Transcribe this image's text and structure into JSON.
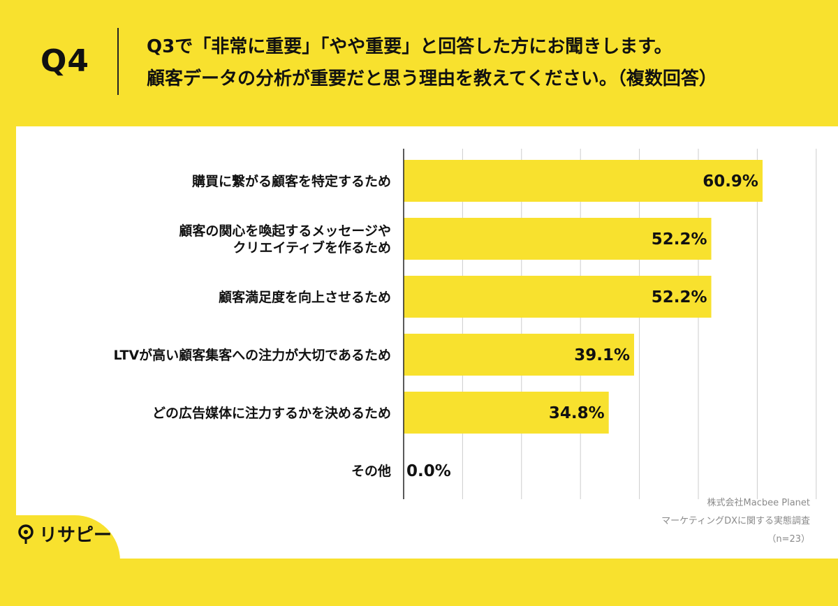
{
  "header": {
    "question_label": "Q4",
    "question_line1": "Q3で「非常に重要」「やや重要」と回答した方にお聞きします。",
    "question_line2": "顧客データの分析が重要だと思う理由を教えてください。（複数回答）"
  },
  "colors": {
    "background": "#f8e12e",
    "bar": "#f8e12e",
    "panel": "#ffffff",
    "grid": "#cccccc"
  },
  "chart_data": {
    "type": "bar",
    "orientation": "horizontal",
    "categories": [
      "購買に繋がる顧客を特定するため",
      "顧客の関心を喚起するメッセージや\nクリエイティブを作るため",
      "顧客満足度を向上させるため",
      "LTVが高い顧客集客への注力が大切であるため",
      "どの広告媒体に注力するかを決めるため",
      "その他"
    ],
    "values": [
      60.9,
      52.2,
      52.2,
      39.1,
      34.8,
      0.0
    ],
    "value_labels": [
      "60.9%",
      "52.2%",
      "52.2%",
      "39.1%",
      "34.8%",
      "0.0%"
    ],
    "xlim": [
      0,
      70
    ],
    "grid": true
  },
  "source": {
    "line1": "株式会社Macbee Planet",
    "line2": "マーケティングDXに関する実態調査",
    "line3": "（n=23）"
  },
  "logo": {
    "icon": "pin-icon",
    "text": "リサピー"
  }
}
